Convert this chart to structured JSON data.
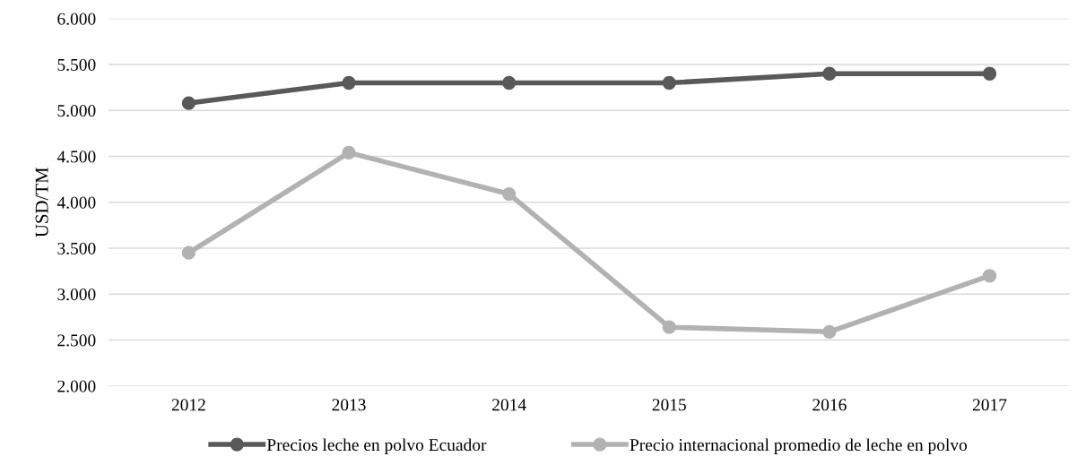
{
  "chart_data": {
    "type": "line",
    "ylabel": "USD/TM",
    "categories": [
      "2012",
      "2013",
      "2014",
      "2015",
      "2016",
      "2017"
    ],
    "series": [
      {
        "name": "Precios leche en polvo Ecuador",
        "color": "#595959",
        "values": [
          5080,
          5300,
          5300,
          5300,
          5400,
          5400
        ]
      },
      {
        "name": "Precio internacional promedio de leche en polvo",
        "color": "#b2b2b2",
        "values": [
          3450,
          4540,
          4090,
          2640,
          2590,
          3200
        ]
      }
    ],
    "ylim": [
      2000,
      6000
    ],
    "yticks": [
      {
        "value": 2000,
        "label": "2.000"
      },
      {
        "value": 2500,
        "label": "2.500"
      },
      {
        "value": 3000,
        "label": "3.000"
      },
      {
        "value": 3500,
        "label": "3.500"
      },
      {
        "value": 4000,
        "label": "4.000"
      },
      {
        "value": 4500,
        "label": "4.500"
      },
      {
        "value": 5000,
        "label": "5.000"
      },
      {
        "value": 5500,
        "label": "5.500"
      },
      {
        "value": 6000,
        "label": "6.000"
      }
    ],
    "grid": "y",
    "legend": "bottom",
    "marker": "circle",
    "line_style": "solid"
  }
}
